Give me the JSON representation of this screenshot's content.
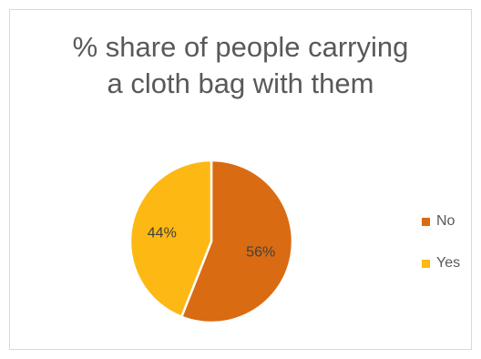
{
  "chart_data": {
    "type": "pie",
    "title_lines": [
      "% share of people carrying",
      "a cloth bag with them"
    ],
    "slices": [
      {
        "label": "No",
        "value": 56,
        "display": "56%",
        "color": "#d96b12"
      },
      {
        "label": "Yes",
        "value": 44,
        "display": "44%",
        "color": "#fdb813"
      }
    ],
    "legend_position": "right"
  }
}
